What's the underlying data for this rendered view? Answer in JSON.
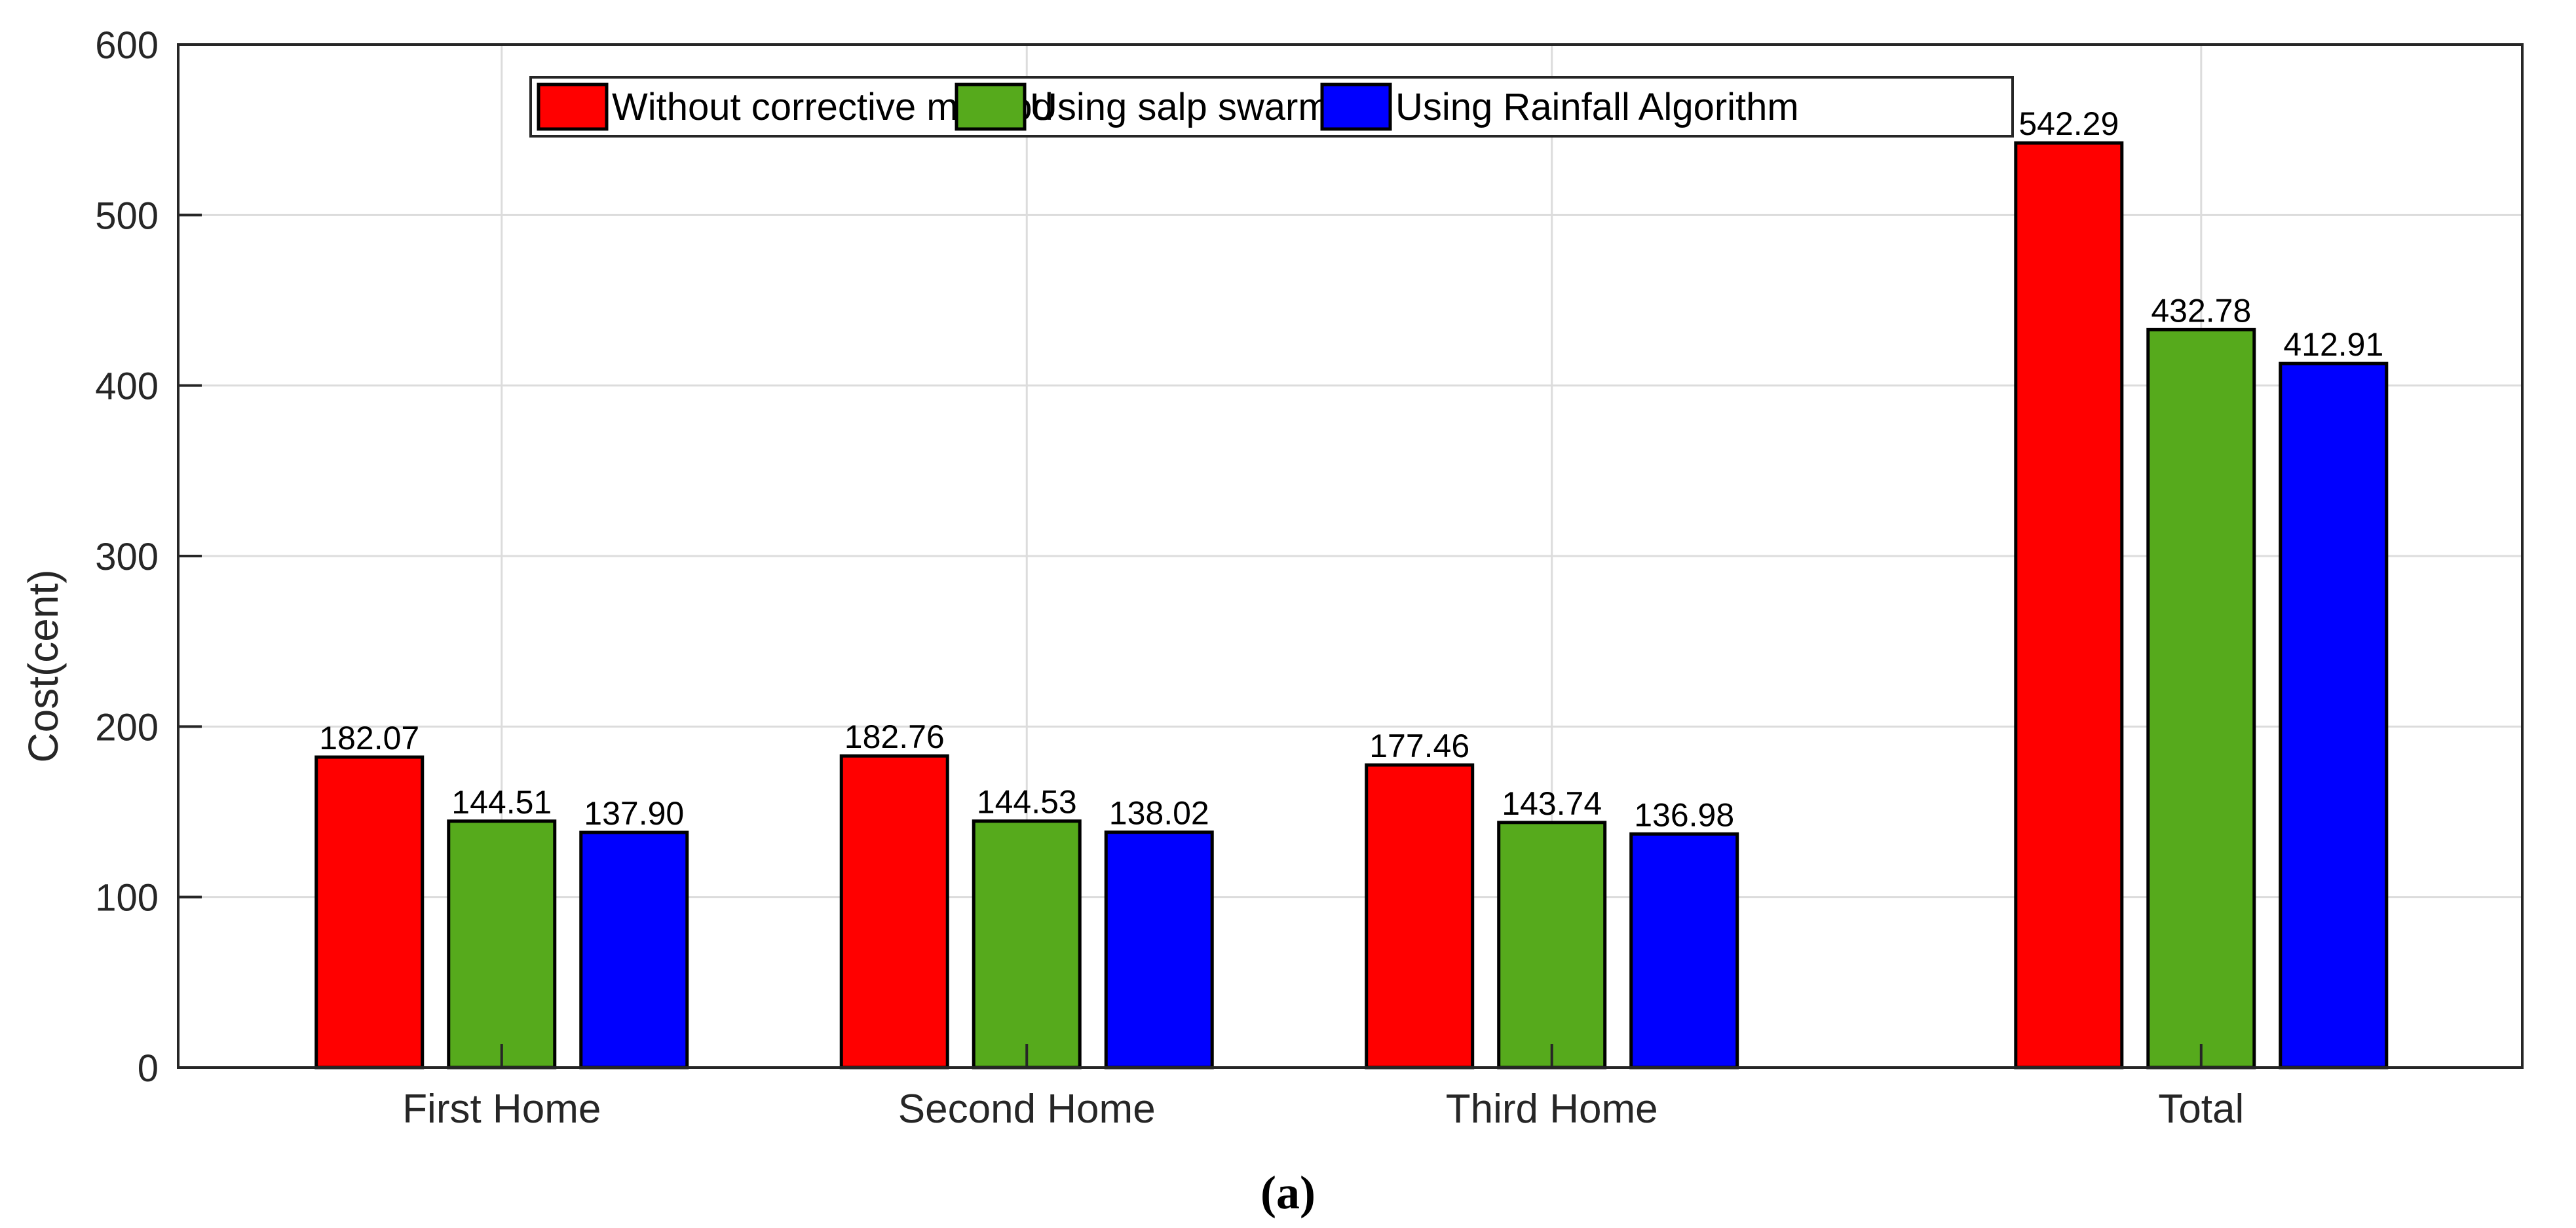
{
  "caption": "(a)",
  "chart_data": {
    "type": "bar",
    "ylabel": "Cost(cent)",
    "xlabel": "",
    "ylim": [
      0,
      600
    ],
    "yticks": [
      "0",
      "100",
      "200",
      "300",
      "400",
      "500",
      "600"
    ],
    "grid": true,
    "legend_position": "top-center",
    "categories": [
      "First Home",
      "Second Home",
      "Third Home",
      "Total"
    ],
    "series": [
      {
        "name": "Without corrective method",
        "color": "#ff0000",
        "values": [
          182.07,
          182.76,
          177.46,
          542.29
        ],
        "labels": [
          "182.07",
          "182.76",
          "177.46",
          "542.29"
        ]
      },
      {
        "name": "Using salp swarm",
        "color": "#56aa1c",
        "values": [
          144.51,
          144.53,
          143.74,
          432.78
        ],
        "labels": [
          "144.51",
          "144.53",
          "143.74",
          "432.78"
        ]
      },
      {
        "name": "Using Rainfall Algorithm",
        "color": "#0000ff",
        "values": [
          137.9,
          138.02,
          136.98,
          412.91
        ],
        "labels": [
          "137.90",
          "138.02",
          "136.98",
          "412.91"
        ]
      }
    ]
  }
}
